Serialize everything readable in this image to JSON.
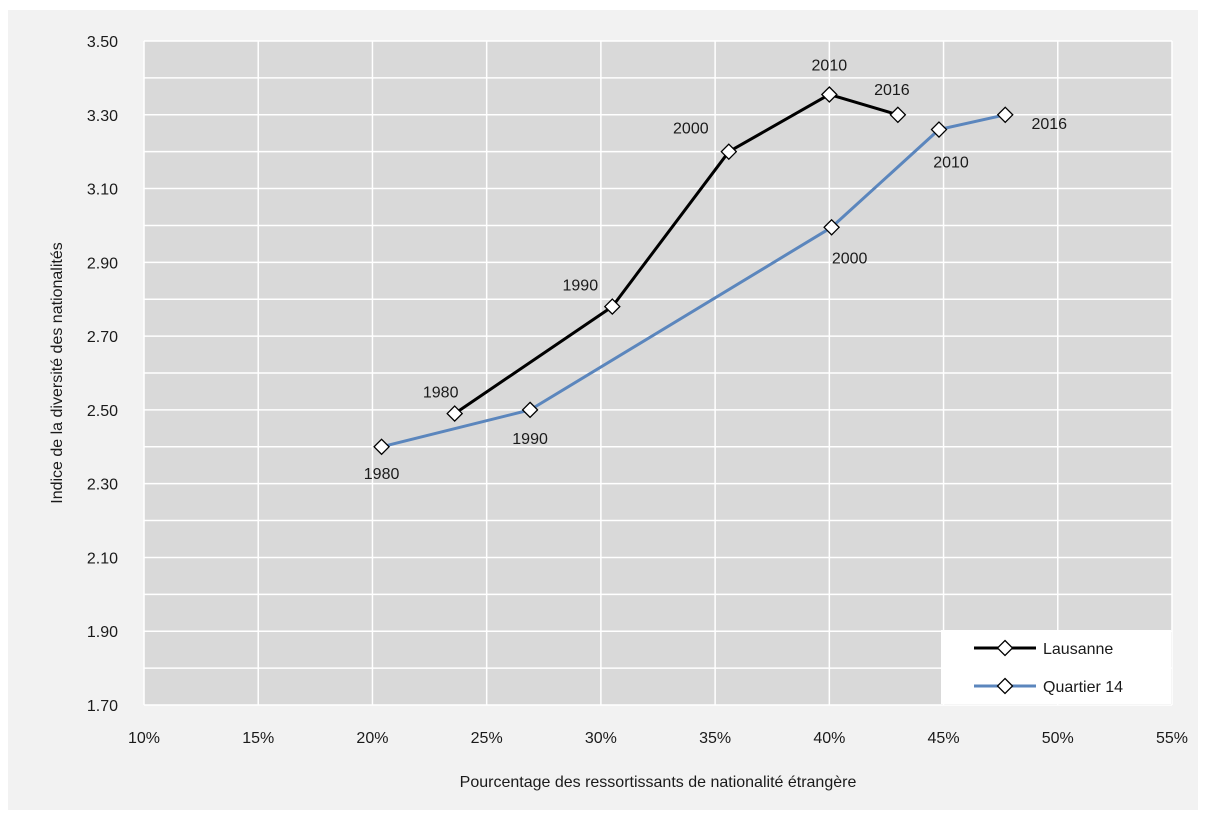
{
  "chart_data": {
    "type": "line",
    "title": "",
    "xlabel": "Pourcentage des ressortissants de nationalité étrangère",
    "ylabel": "Indice de la diversité des nationalités",
    "xlim": [
      0.1,
      0.55
    ],
    "ylim": [
      1.7,
      3.5
    ],
    "x_ticks": [
      "10%",
      "15%",
      "20%",
      "25%",
      "30%",
      "35%",
      "40%",
      "45%",
      "50%",
      "55%"
    ],
    "y_ticks": [
      "1.70",
      "1.90",
      "2.10",
      "2.30",
      "2.50",
      "2.70",
      "2.90",
      "3.10",
      "3.30",
      "3.50"
    ],
    "grid": true,
    "legend_position": "bottom-right",
    "series": [
      {
        "name": "Lausanne",
        "color": "#000000",
        "points": [
          {
            "label": "1980",
            "x": 0.236,
            "y": 2.49
          },
          {
            "label": "1990",
            "x": 0.305,
            "y": 2.78
          },
          {
            "label": "2000",
            "x": 0.356,
            "y": 3.2
          },
          {
            "label": "2010",
            "x": 0.4,
            "y": 3.355
          },
          {
            "label": "2016",
            "x": 0.43,
            "y": 3.3
          }
        ]
      },
      {
        "name": "Quartier 14",
        "color": "#5b86bd",
        "points": [
          {
            "label": "1980",
            "x": 0.204,
            "y": 2.4
          },
          {
            "label": "1990",
            "x": 0.269,
            "y": 2.5
          },
          {
            "label": "2000",
            "x": 0.401,
            "y": 2.995
          },
          {
            "label": "2010",
            "x": 0.448,
            "y": 3.26
          },
          {
            "label": "2016",
            "x": 0.477,
            "y": 3.3
          }
        ]
      }
    ]
  }
}
